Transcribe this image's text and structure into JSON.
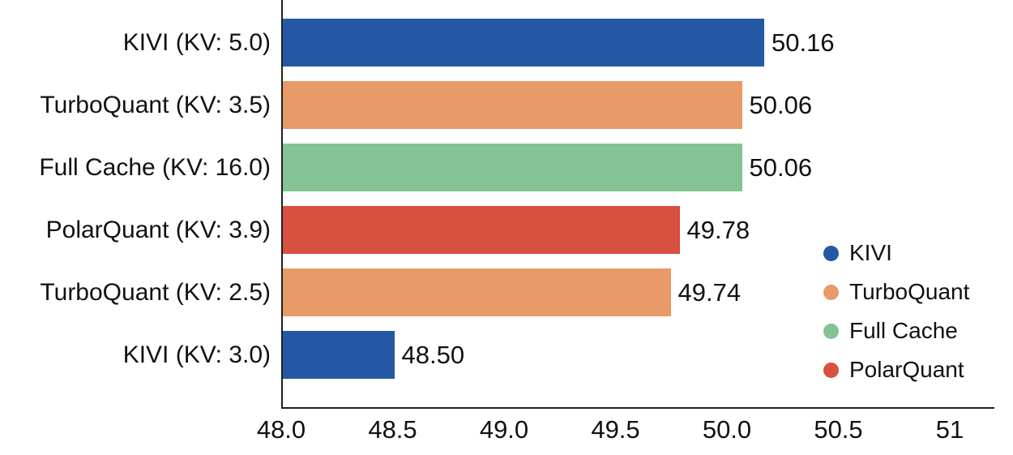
{
  "chart_data": {
    "type": "bar",
    "orientation": "horizontal",
    "title": "",
    "xlabel": "",
    "ylabel": "",
    "categories": [
      "KIVI (KV: 5.0)",
      "TurboQuant (KV: 3.5)",
      "Full Cache (KV: 16.0)",
      "PolarQuant (KV: 3.9)",
      "TurboQuant (KV: 2.5)",
      "KIVI (KV: 3.0)"
    ],
    "values": [
      50.16,
      50.06,
      50.06,
      49.78,
      49.74,
      48.5
    ],
    "value_labels": [
      "50.16",
      "50.06",
      "50.06",
      "49.78",
      "49.74",
      "48.50"
    ],
    "bar_series": [
      "KIVI",
      "TurboQuant",
      "Full Cache",
      "PolarQuant",
      "TurboQuant",
      "KIVI"
    ],
    "series_colors": {
      "KIVI": "#2458A4",
      "TurboQuant": "#E89A68",
      "Full Cache": "#84C494",
      "PolarQuant": "#D8503F"
    },
    "xlim": [
      48.0,
      51.2
    ],
    "x_tick_values": [
      48.0,
      48.5,
      49.0,
      49.5,
      50.0,
      50.5,
      51.0
    ],
    "x_tick_labels": [
      "48.0",
      "48.5",
      "49.0",
      "49.5",
      "50.0",
      "50.5",
      "51"
    ],
    "grid": false,
    "legend_position": "right-middle",
    "legend": [
      {
        "label": "KIVI",
        "color": "#2458A4"
      },
      {
        "label": "TurboQuant",
        "color": "#E89A68"
      },
      {
        "label": "Full Cache",
        "color": "#84C494"
      },
      {
        "label": "PolarQuant",
        "color": "#D8503F"
      }
    ],
    "axis_color": "#1f1f1f",
    "text_color": "#111111"
  }
}
